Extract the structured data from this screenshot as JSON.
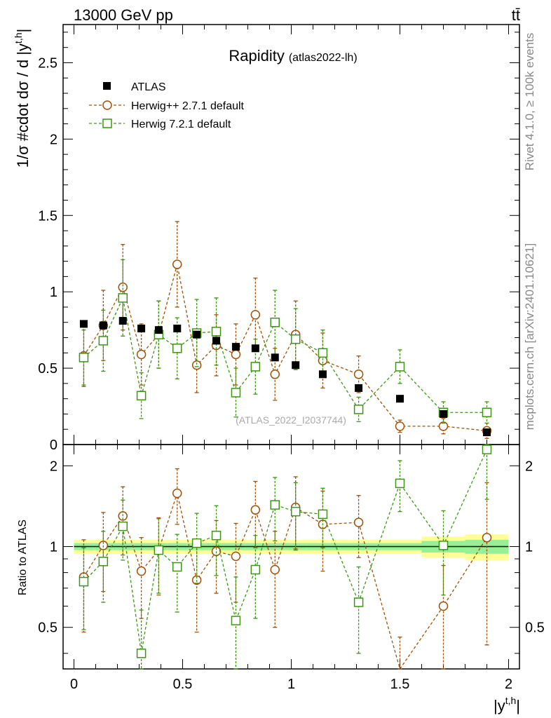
{
  "header": {
    "energy_label": "13000 GeV pp",
    "process_label": "tt̄"
  },
  "side": {
    "rivet_label": "Rivet 4.1.0, ≥ 100k events",
    "mcplots_label": "mcplots.cern.ch [arXiv:2401.10621]"
  },
  "chart_data": {
    "type": "scatter",
    "title": "Rapidity",
    "subtitle": "(atlas2022-lh)",
    "watermark": "(ATLAS_2022_I2037744)",
    "xlabel": "|y",
    "xlabel_sup": "t,h",
    "ylabel": "1/σ #cdot dσ / d |y",
    "ylabel_sup": "t,h",
    "ylabel_end": "|",
    "ratio_ylabel": "Ratio to ATLAS",
    "xlim": [
      -0.05,
      2.05
    ],
    "ylim": [
      0,
      2.75
    ],
    "ratio_ylim": [
      0.35,
      2.4
    ],
    "x_ticks": [
      0,
      0.5,
      1,
      1.5,
      2
    ],
    "x_tick_labels": [
      "0",
      "0.5",
      "1",
      "1.5",
      "2"
    ],
    "y_ticks": [
      0,
      0.5,
      1,
      1.5,
      2,
      2.5
    ],
    "y_tick_labels": [
      "0",
      "0.5",
      "1",
      "1.5",
      "2",
      "2.5"
    ],
    "ratio_ticks": [
      0.5,
      1,
      2
    ],
    "ratio_tick_labels": [
      "0.5",
      "1",
      "2"
    ],
    "bin_edges": [
      0,
      0.09,
      0.18,
      0.27,
      0.35,
      0.43,
      0.52,
      0.61,
      0.7,
      0.79,
      0.88,
      0.97,
      1.07,
      1.22,
      1.4,
      1.6,
      1.8,
      2.0
    ],
    "x": [
      0.045,
      0.135,
      0.225,
      0.31,
      0.39,
      0.475,
      0.565,
      0.655,
      0.745,
      0.835,
      0.925,
      1.02,
      1.145,
      1.31,
      1.5,
      1.7,
      1.9
    ],
    "series": [
      {
        "name": "ATLAS",
        "color": "#000000",
        "marker": "filled-square",
        "values": [
          0.79,
          0.78,
          0.81,
          0.76,
          0.75,
          0.76,
          0.72,
          0.68,
          0.64,
          0.63,
          0.57,
          0.52,
          0.46,
          0.37,
          0.3,
          0.2,
          0.08
        ],
        "errors": [
          0.02,
          0.02,
          0.02,
          0.02,
          0.02,
          0.02,
          0.02,
          0.02,
          0.02,
          0.02,
          0.02,
          0.02,
          0.02,
          0.02,
          0.01,
          0.01,
          0.01
        ],
        "band_stat": [
          0.03,
          0.03,
          0.03,
          0.03,
          0.03,
          0.03,
          0.03,
          0.03,
          0.03,
          0.03,
          0.03,
          0.03,
          0.03,
          0.03,
          0.03,
          0.05,
          0.06
        ],
        "band_total": [
          0.06,
          0.06,
          0.06,
          0.06,
          0.06,
          0.06,
          0.06,
          0.06,
          0.06,
          0.06,
          0.06,
          0.06,
          0.06,
          0.06,
          0.06,
          0.09,
          0.11
        ]
      },
      {
        "name": "Herwig++ 2.7.1 default",
        "color": "#a0500a",
        "marker": "open-circle",
        "values": [
          0.58,
          0.78,
          1.03,
          0.59,
          0.72,
          1.18,
          0.52,
          0.65,
          0.59,
          0.85,
          0.46,
          0.72,
          0.55,
          0.46,
          0.12,
          0.12,
          0.09
        ],
        "errors": [
          0.2,
          0.23,
          0.28,
          0.2,
          0.22,
          0.28,
          0.18,
          0.2,
          0.2,
          0.24,
          0.17,
          0.22,
          0.18,
          0.12,
          0.04,
          0.05,
          0.05
        ],
        "ratio": [
          0.77,
          1.01,
          1.3,
          0.81,
          0.97,
          1.58,
          0.75,
          0.96,
          0.92,
          1.37,
          0.82,
          1.4,
          1.21,
          1.23,
          0.33,
          0.6,
          1.08
        ],
        "ratio_errors": [
          0.29,
          0.33,
          0.37,
          0.27,
          0.31,
          0.37,
          0.27,
          0.29,
          0.3,
          0.38,
          0.32,
          0.42,
          0.4,
          0.32,
          0.13,
          0.25,
          0.65
        ]
      },
      {
        "name": "Herwig 7.2.1 default",
        "color": "#3c9614",
        "marker": "open-square",
        "values": [
          0.57,
          0.68,
          0.96,
          0.32,
          0.72,
          0.63,
          0.73,
          0.74,
          0.34,
          0.51,
          0.8,
          0.69,
          0.6,
          0.23,
          0.51,
          0.21,
          0.21
        ],
        "errors": [
          0.18,
          0.2,
          0.25,
          0.15,
          0.22,
          0.2,
          0.22,
          0.22,
          0.16,
          0.18,
          0.21,
          0.2,
          0.15,
          0.08,
          0.11,
          0.07,
          0.07
        ],
        "ratio": [
          0.74,
          0.88,
          1.19,
          0.4,
          0.97,
          0.84,
          1.03,
          1.1,
          0.53,
          0.82,
          1.43,
          1.35,
          1.32,
          0.62,
          1.72,
          1.01,
          2.3
        ],
        "ratio_errors": [
          0.25,
          0.26,
          0.3,
          0.18,
          0.3,
          0.27,
          0.3,
          0.32,
          0.24,
          0.28,
          0.38,
          0.38,
          0.33,
          0.22,
          0.37,
          0.35,
          0.8
        ]
      }
    ]
  }
}
